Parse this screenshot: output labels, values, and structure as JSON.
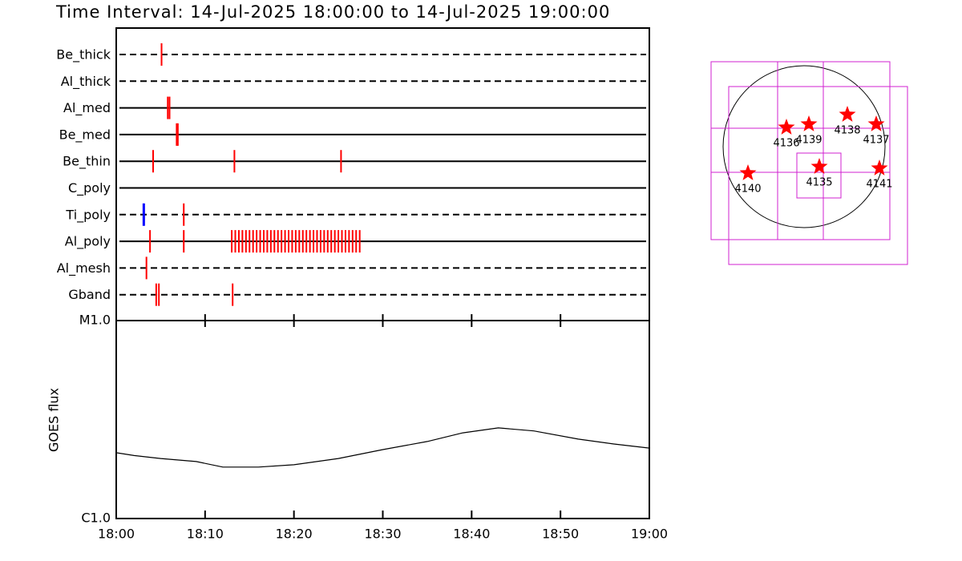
{
  "chart_data": {
    "type": "timeline",
    "title": "Time Interval: 14-Jul-2025 18:00:00 to 14-Jul-2025 19:00:00",
    "xlim": [
      "18:00",
      "19:00"
    ],
    "xticks": [
      "18:00",
      "18:10",
      "18:20",
      "18:30",
      "18:40",
      "18:50",
      "19:00"
    ],
    "rows": [
      {
        "name": "Be_thick",
        "style": "dashed",
        "events": [
          {
            "times": [
              "18:05:06"
            ],
            "color": "#ff0000"
          }
        ]
      },
      {
        "name": "Al_thick",
        "style": "dashed",
        "events": []
      },
      {
        "name": "Al_med",
        "style": "solid",
        "events": [
          {
            "times": [
              "18:05:48",
              "18:06:00"
            ],
            "color": "#ff0000"
          }
        ]
      },
      {
        "name": "Be_med",
        "style": "solid",
        "events": [
          {
            "times": [
              "18:06:48",
              "18:06:56"
            ],
            "color": "#ff0000"
          }
        ]
      },
      {
        "name": "Be_thin",
        "style": "solid",
        "events": [
          {
            "times": [
              "18:04:09",
              "18:13:18",
              "18:25:18"
            ],
            "color": "#ff0000"
          }
        ]
      },
      {
        "name": "C_poly",
        "style": "solid",
        "events": []
      },
      {
        "name": "Ti_poly",
        "style": "dashed",
        "events": [
          {
            "times": [
              "18:03:06"
            ],
            "color": "#0000ff"
          },
          {
            "times": [
              "18:07:36"
            ],
            "color": "#ff0000"
          }
        ]
      },
      {
        "name": "Al_poly",
        "style": "solid",
        "events": [
          {
            "times": [
              "18:03:48",
              "18:07:36",
              "18:13:00",
              "18:13:24",
              "18:13:48",
              "18:14:12",
              "18:14:36",
              "18:15:00",
              "18:15:24",
              "18:15:48",
              "18:16:12",
              "18:16:36",
              "18:17:00",
              "18:17:24",
              "18:17:48",
              "18:18:12",
              "18:18:36",
              "18:19:00",
              "18:19:24",
              "18:19:48",
              "18:20:12",
              "18:20:36",
              "18:21:00",
              "18:21:24",
              "18:21:48",
              "18:22:12",
              "18:22:36",
              "18:23:00",
              "18:23:24",
              "18:23:48",
              "18:24:12",
              "18:24:36",
              "18:25:00",
              "18:25:24",
              "18:25:48",
              "18:26:12",
              "18:26:36",
              "18:27:00",
              "18:27:24"
            ],
            "color": "#ff0000"
          }
        ]
      },
      {
        "name": "Al_mesh",
        "style": "dashed",
        "events": [
          {
            "times": [
              "18:03:24"
            ],
            "color": "#ff0000"
          }
        ]
      },
      {
        "name": "Gband",
        "style": "dashed",
        "events": [
          {
            "times": [
              "18:04:30",
              "18:04:48",
              "18:13:06"
            ],
            "color": "#ff0000"
          }
        ]
      }
    ],
    "flux": {
      "y_label": "GOES flux",
      "log_scale": true,
      "color": "#000000",
      "ylim": [
        1e-06,
        1e-05
      ],
      "yticks": [
        {
          "value": 1e-06,
          "label": "C1.0"
        },
        {
          "value": 1e-05,
          "label": "M1.0"
        }
      ],
      "x": [
        "18:00",
        "18:02",
        "18:05",
        "18:09",
        "18:12",
        "18:16",
        "18:20",
        "18:25",
        "18:30",
        "18:35",
        "18:39",
        "18:43",
        "18:47",
        "18:52",
        "18:56",
        "19:00"
      ],
      "values": [
        2.15e-06,
        2.08e-06,
        2.01e-06,
        1.94e-06,
        1.82e-06,
        1.82e-06,
        1.87e-06,
        2.01e-06,
        2.23e-06,
        2.45e-06,
        2.71e-06,
        2.87e-06,
        2.77e-06,
        2.52e-06,
        2.38e-06,
        2.27e-06
      ]
    },
    "regions": [
      "4136",
      "4139",
      "4138",
      "4137",
      "4135",
      "4140",
      "4141"
    ]
  }
}
